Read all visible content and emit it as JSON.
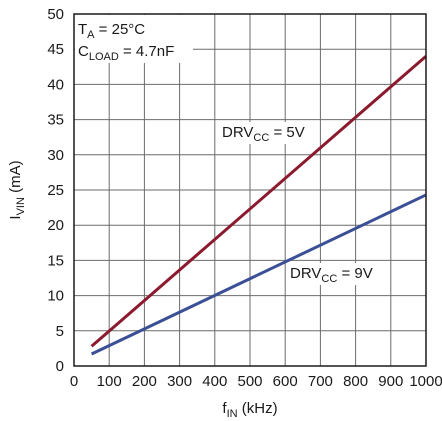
{
  "chart_data": {
    "type": "line",
    "xlabel": {
      "main": "f",
      "sub": "IN",
      "rest": " (kHz)"
    },
    "ylabel": {
      "main": "I",
      "sub": "VIN",
      "rest": " (mA)"
    },
    "xlim": [
      0,
      1000
    ],
    "ylim": [
      0,
      50
    ],
    "xticks": [
      "0",
      "100",
      "200",
      "300",
      "400",
      "500",
      "600",
      "700",
      "800",
      "900",
      "1000"
    ],
    "yticks": [
      "0",
      "5",
      "10",
      "15",
      "20",
      "25",
      "30",
      "35",
      "40",
      "45",
      "50"
    ],
    "grid": true,
    "annotations": [
      {
        "main": "T",
        "sub": "A",
        "rest": " = 25°C"
      },
      {
        "main": "C",
        "sub": "LOAD",
        "rest": " = 4.7nF"
      }
    ],
    "series": [
      {
        "name": "DRVCC = 5V",
        "label": {
          "main": "DRV",
          "sub": "CC",
          "rest": " = 5V"
        },
        "color": "#8b1a2e",
        "x": [
          50,
          1000
        ],
        "y": [
          2.8,
          44.0
        ]
      },
      {
        "name": "DRVCC = 9V",
        "label": {
          "main": "DRV",
          "sub": "CC",
          "rest": " = 9V"
        },
        "color": "#3b4f96",
        "x": [
          50,
          1000
        ],
        "y": [
          1.7,
          24.3
        ]
      }
    ]
  }
}
